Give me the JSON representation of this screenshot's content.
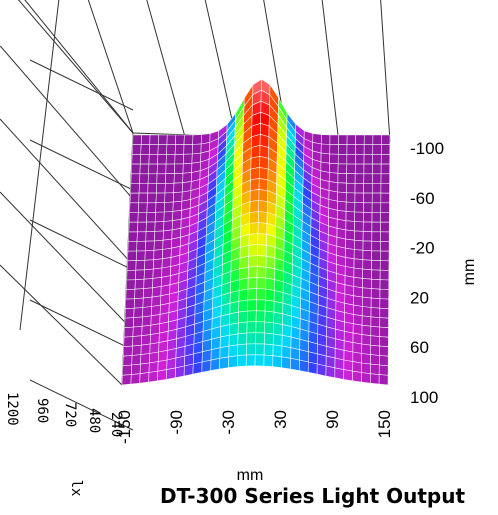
{
  "title": "DT-300 Series Light Output",
  "chart_data": {
    "type": "surface",
    "title": "DT-300 Series Light Output",
    "x_axis": {
      "label": "mm",
      "ticks": [
        "-150",
        "-90",
        "-30",
        "30",
        "90",
        "150"
      ],
      "range": [
        -150,
        150
      ]
    },
    "y_axis": {
      "label": "mm",
      "ticks": [
        "-100",
        "-60",
        "-20",
        "20",
        "60",
        "100"
      ],
      "range": [
        -100,
        100
      ]
    },
    "z_axis": {
      "label": "lx",
      "ticks": [
        "1200",
        "960",
        "720",
        "480",
        "240"
      ],
      "range": [
        0,
        1200
      ]
    },
    "surface": {
      "peak_x_mm": 0,
      "peak_y_mm": -100,
      "peak_value": 1200,
      "colormap": [
        "#8c1a9e",
        "#d020d8",
        "#3040ff",
        "#00d8ff",
        "#00ff40",
        "#f0ff00",
        "#ff6000",
        "#ff0000",
        "#ffffff"
      ]
    },
    "grid": true
  }
}
